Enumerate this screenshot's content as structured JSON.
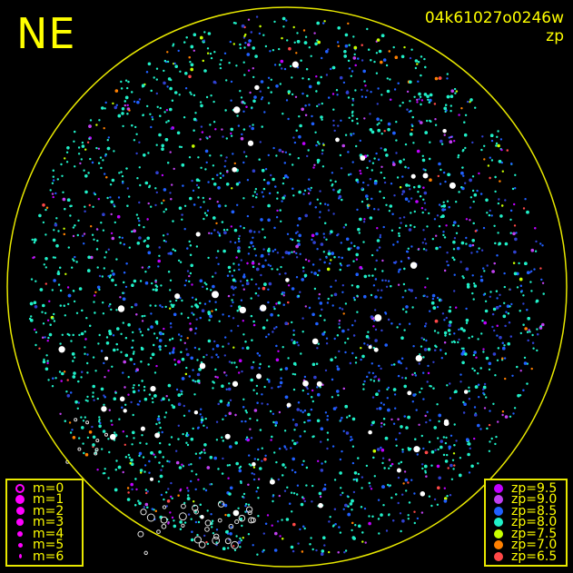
{
  "title": "NE",
  "image_id": "04k61027o0246w",
  "color_key": "zp",
  "chart_data": {
    "type": "scatter",
    "title": "NE",
    "subtitle": "04k61027o0246w",
    "color_by": "zp",
    "grid": false,
    "size_legend": {
      "placement": "bottom-left",
      "entries": [
        "m=0",
        "m=1",
        "m=2",
        "m=3",
        "m=4",
        "m=5",
        "m=6"
      ]
    },
    "color_legend": {
      "placement": "bottom-right",
      "entries": [
        {
          "label": "zp=9.5",
          "color": "#c000ff"
        },
        {
          "label": "zp=9.0",
          "color": "#c040f0"
        },
        {
          "label": "zp=8.5",
          "color": "#2060ff"
        },
        {
          "label": "zp=8.0",
          "color": "#20f0c8"
        },
        {
          "label": "zp=7.5",
          "color": "#c8ff00"
        },
        {
          "label": "zp=7.0",
          "color": "#ff8000"
        },
        {
          "label": "zp=6.5",
          "color": "#ff4848"
        }
      ]
    },
    "horizon_color": "#e8e800"
  }
}
